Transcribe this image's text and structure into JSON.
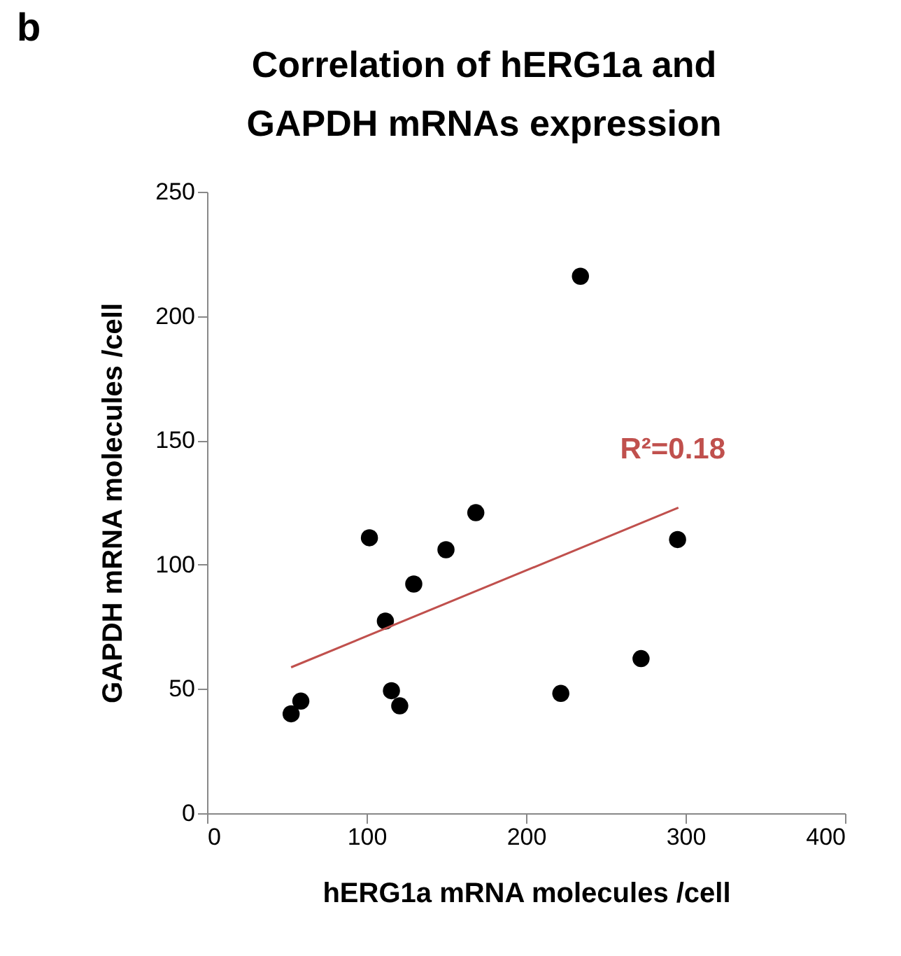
{
  "chart_data": {
    "type": "scatter",
    "title": "Correlation of hERG1a and GAPDH mRNAs expression",
    "xlabel": "hERG1a mRNA molecules /cell",
    "ylabel": "GAPDH mRNA molecules /cell",
    "annotations": [
      "b",
      "R²=0.18"
    ],
    "x": [
      52.7,
      58.8,
      101.8,
      111.8,
      115.6,
      120.8,
      129.6,
      149.8,
      168.5,
      221.8,
      234.1,
      272.1,
      295
    ],
    "series": [
      {
        "color": "#000000",
        "marker": "circle",
        "values": [
          40,
          45.1,
          110.8,
          77.3,
          49.3,
          43.2,
          92.2,
          106,
          120.9,
          48.2,
          216,
          62.2,
          110.1
        ]
      },
      {
        "type": "line",
        "color": "#c0504d",
        "x": [
          52.7,
          295.5
        ],
        "values": [
          58.7,
          122.9
        ]
      }
    ],
    "xlim": [
      0,
      400
    ],
    "xticks": [
      0,
      100,
      200,
      300,
      400
    ],
    "ylim": [
      0,
      250
    ],
    "yticks": [
      0,
      50,
      100,
      150,
      200,
      250
    ],
    "grid": false
  }
}
